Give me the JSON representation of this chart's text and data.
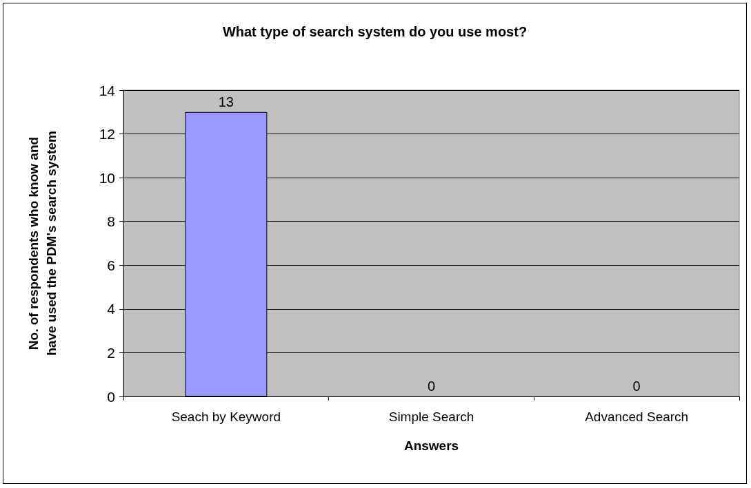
{
  "chart_data": {
    "type": "bar",
    "title": "What type of search system do you use most?",
    "xlabel": "Answers",
    "ylabel": "No. of respondents who know and\nhave used the PDM's search system",
    "categories": [
      "Seach by Keyword",
      "Simple Search",
      "Advanced Search"
    ],
    "values": [
      13,
      0,
      0
    ],
    "color": "#9999ff",
    "ylim": [
      0,
      14
    ],
    "yticks": [
      0,
      2,
      4,
      6,
      8,
      10,
      12,
      14
    ],
    "grid": "y",
    "data_labels": true
  }
}
